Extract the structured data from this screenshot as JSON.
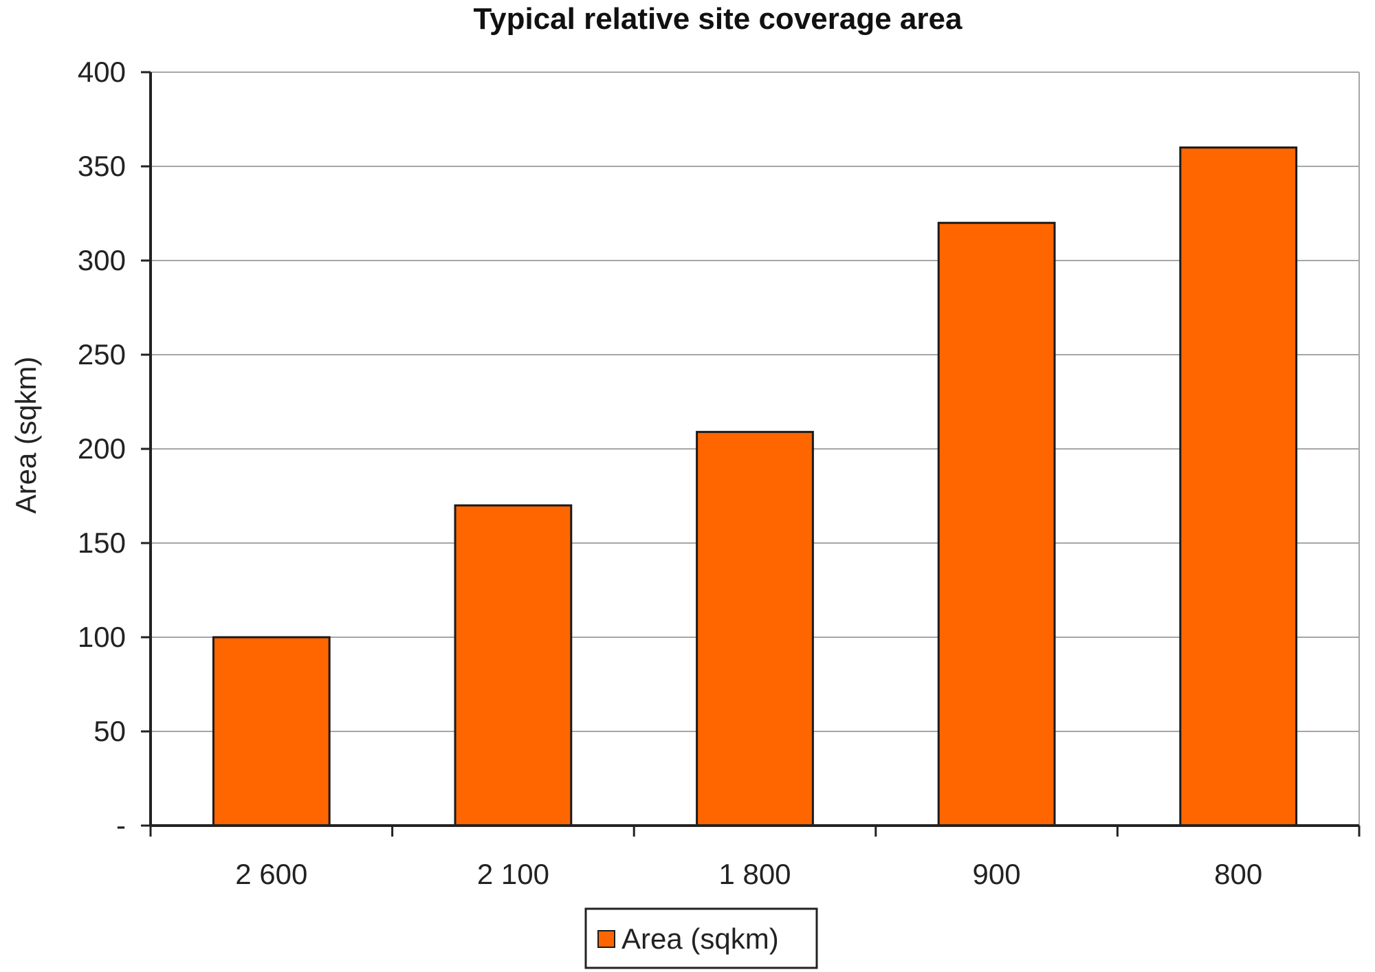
{
  "chart_data": {
    "type": "bar",
    "title": "Typical relative site coverage area",
    "xlabel": "",
    "ylabel": "Area (sqkm)",
    "categories": [
      "2 600",
      "2 100",
      "1 800",
      "900",
      "800"
    ],
    "series": [
      {
        "name": "Area (sqkm)",
        "values": [
          100,
          170,
          209,
          320,
          360
        ],
        "color": "#ff6600"
      }
    ],
    "ylim": [
      0,
      400
    ],
    "yticks": [
      0,
      50,
      100,
      150,
      200,
      250,
      300,
      350,
      400
    ],
    "ytick_labels": [
      "-",
      "50",
      "100",
      "150",
      "200",
      "250",
      "300",
      "350",
      "400"
    ],
    "grid": true,
    "legend": "bottom-center"
  }
}
